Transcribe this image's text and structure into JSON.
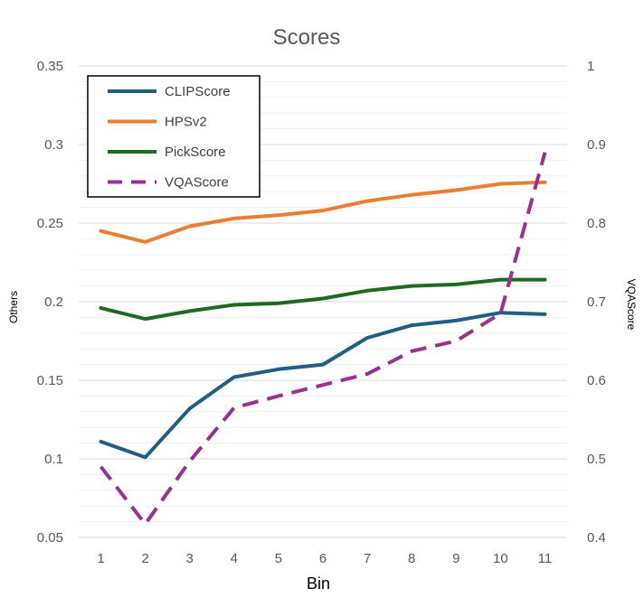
{
  "chart_data": {
    "type": "line",
    "title": "Scores",
    "xlabel": "Bin",
    "ylabel_left": "Others",
    "ylabel_right": "VQAScore",
    "categories": [
      "1",
      "2",
      "3",
      "4",
      "5",
      "6",
      "7",
      "8",
      "9",
      "10",
      "11"
    ],
    "y_left": {
      "min": 0.05,
      "max": 0.35,
      "ticks": [
        0.35,
        0.3,
        0.25,
        0.2,
        0.15,
        0.1,
        0.05
      ],
      "tick_labels": [
        "0.35",
        "0.3",
        "0.25",
        "0.2",
        "0.15",
        "0.1",
        "0.05"
      ]
    },
    "y_right": {
      "min": 0.4,
      "max": 1.0,
      "ticks": [
        1,
        0.9,
        0.8,
        0.7,
        0.6,
        0.5,
        0.4
      ],
      "tick_labels": [
        "1",
        "0.9",
        "0.8",
        "0.7",
        "0.6",
        "0.5",
        "0.4"
      ]
    },
    "series": [
      {
        "name": "CLIPScore",
        "axis": "left",
        "color": "#1f5f84",
        "dash": false,
        "values": [
          0.111,
          0.101,
          0.132,
          0.152,
          0.157,
          0.16,
          0.177,
          0.185,
          0.188,
          0.193,
          0.192
        ]
      },
      {
        "name": "HPSv2",
        "axis": "left",
        "color": "#ed7d31",
        "dash": false,
        "values": [
          0.245,
          0.238,
          0.248,
          0.253,
          0.255,
          0.258,
          0.264,
          0.268,
          0.271,
          0.275,
          0.276
        ]
      },
      {
        "name": "PickScore",
        "axis": "left",
        "color": "#1e6b1e",
        "dash": false,
        "values": [
          0.196,
          0.189,
          0.194,
          0.198,
          0.199,
          0.202,
          0.207,
          0.21,
          0.211,
          0.214,
          0.214
        ]
      },
      {
        "name": "VQAScore",
        "axis": "right",
        "color": "#9b2f92",
        "dash": true,
        "values": [
          0.49,
          0.417,
          0.497,
          0.565,
          0.58,
          0.594,
          0.608,
          0.637,
          0.65,
          0.685,
          0.89
        ]
      }
    ],
    "grid": true,
    "legend_position": "top-left"
  }
}
